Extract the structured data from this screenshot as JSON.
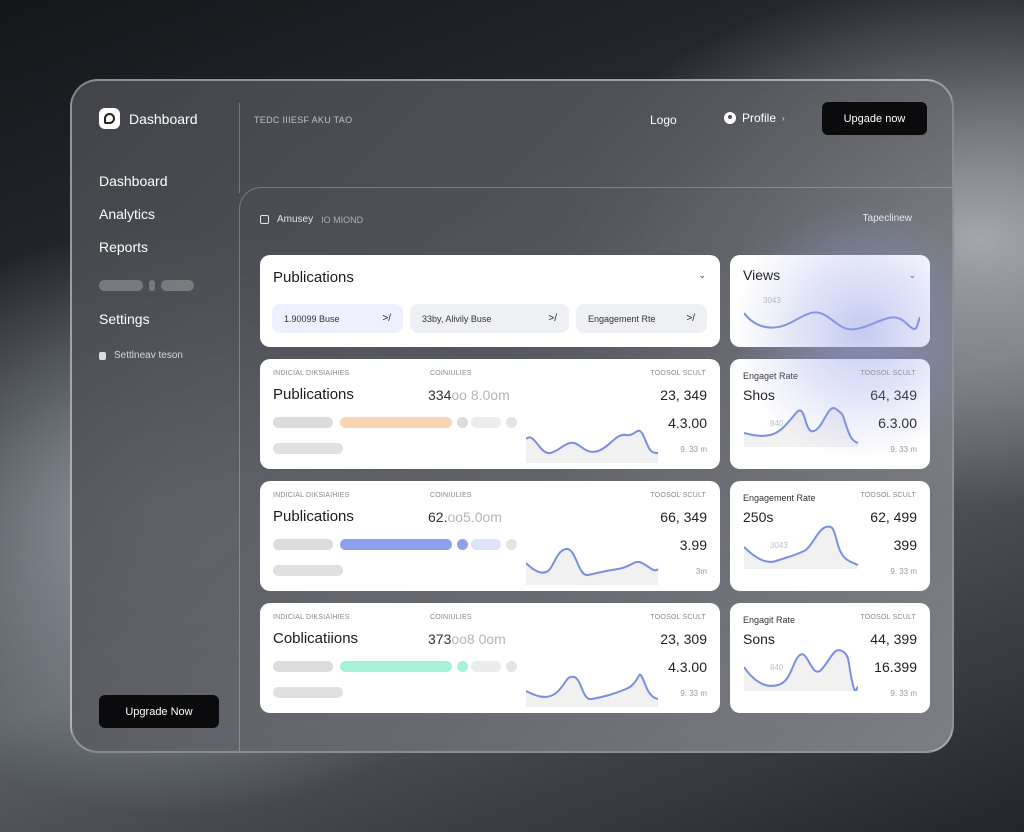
{
  "sidebar": {
    "brand": "Dashboard",
    "items": [
      {
        "label": "Dashboard"
      },
      {
        "label": "Analytics"
      },
      {
        "label": "Reports"
      },
      {
        "label": "Settings"
      }
    ],
    "sub_item": "Settlneav teson",
    "upgrade_label": "Upgrade Now"
  },
  "topbar": {
    "crumb": "TEDC IIIESF AKU TAO",
    "logo": "Logo",
    "profile": "Profile",
    "upgrade_label": "Upgade now"
  },
  "main": {
    "header": "Amusey",
    "header_sub": "IO MIOND",
    "header_right": "Tapeclinew"
  },
  "publications_card": {
    "title": "Publications",
    "chips": [
      {
        "label": "1.90099 Buse",
        "arrow": ">/"
      },
      {
        "label": "33by, Alivily Buse",
        "arrow": ">/"
      },
      {
        "label": "Engagement Rte",
        "arrow": ">/"
      }
    ]
  },
  "views_card": {
    "title": "Views",
    "chart_value": "3043"
  },
  "rows": [
    {
      "label_a": "INDICIAL DIKSIAIHIES",
      "label_b": "COINIULIES",
      "label_c": "TOOSOL SCULT",
      "title": "Publications",
      "num_main": "334",
      "num_faint": "oo 8.0om",
      "right_main": "23, 349",
      "right_sub": "4.3.00",
      "right_small": "9. 33 m",
      "accent": "#fbd4b4"
    },
    {
      "label_a": "INDICIAL DIKSIAIHIES",
      "label_b": "COINIULIES",
      "label_c": "TOOSOL SCULT",
      "title": "Publications",
      "num_main": "62.",
      "num_faint": "oo5.0om",
      "right_main": "66, 349",
      "right_sub": "3.99",
      "right_small": "3m",
      "accent": "#8ea2ec"
    },
    {
      "label_a": "INDICIAL DIKSIAIHIES",
      "label_b": "COINIULIES",
      "label_c": "TOOSOL SCULT",
      "title": "Coblicatiions",
      "num_main": "373",
      "num_faint": "oo8 0om",
      "right_main": "23, 309",
      "right_sub": "4.3.00",
      "right_small": "9. 33 m",
      "accent": "#a6f2d8"
    }
  ],
  "side_cards": [
    {
      "title": "Engaget Rate",
      "label": "TOOSOL SCULT",
      "main": "Shos",
      "right_main": "64, 349",
      "right_sub": "6.3.00",
      "right_small": "9. 33 m",
      "chart_value": "840"
    },
    {
      "title": "Engagement Rate",
      "label": "TOOSOL SCULT",
      "main": "250s",
      "right_main": "62, 499",
      "right_sub": "399",
      "right_small": "9. 33 m",
      "chart_value": "3043"
    },
    {
      "title": "Engagit Rate",
      "label": "TOOSOL SCULT",
      "main": "Sons",
      "right_main": "44, 399",
      "right_sub": "16.399",
      "right_small": "9. 33 m",
      "chart_value": "840"
    }
  ],
  "colors": {
    "accent_line": "#7b8fe0",
    "dark_button": "#0b0b0d"
  }
}
